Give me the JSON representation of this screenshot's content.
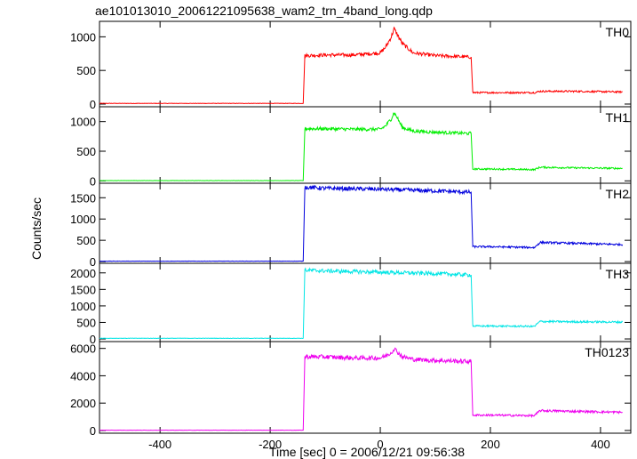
{
  "chart_data": {
    "type": "line",
    "title": "ae101013010_20061221095638_wam2_trn_4band_long.qdp",
    "xlabel": "Time [sec] 0 = 2006/12/21 09:56:38",
    "ylabel": "Counts/sec",
    "xlim": [
      -510,
      455
    ],
    "xticks": [
      -400,
      -200,
      0,
      200,
      400
    ],
    "grid": false,
    "panels": [
      {
        "name": "TH0",
        "color": "#ff0000",
        "ylim": [
          -40,
          1230
        ],
        "yticks": [
          0,
          500,
          1000
        ],
        "x": [
          -510,
          -140,
          -137,
          -100,
          -50,
          0,
          10,
          20,
          25,
          30,
          40,
          60,
          100,
          160,
          165,
          168,
          200,
          280,
          290,
          350,
          440
        ],
        "y": [
          10,
          10,
          720,
          730,
          730,
          760,
          850,
          1000,
          1120,
          1050,
          900,
          760,
          720,
          700,
          700,
          170,
          170,
          170,
          190,
          190,
          180
        ]
      },
      {
        "name": "TH1",
        "color": "#00ee00",
        "ylim": [
          -40,
          1250
        ],
        "yticks": [
          0,
          500,
          1000
        ],
        "x": [
          -510,
          -140,
          -137,
          -100,
          -50,
          0,
          10,
          20,
          25,
          30,
          40,
          60,
          100,
          160,
          165,
          168,
          200,
          280,
          290,
          350,
          440
        ],
        "y": [
          5,
          5,
          880,
          880,
          870,
          870,
          930,
          1050,
          1150,
          1080,
          900,
          840,
          820,
          800,
          800,
          200,
          200,
          190,
          230,
          220,
          210
        ]
      },
      {
        "name": "TH2",
        "color": "#0000dd",
        "ylim": [
          -40,
          1840
        ],
        "yticks": [
          0,
          500,
          1000,
          1500
        ],
        "x": [
          -510,
          -140,
          -137,
          -100,
          0,
          100,
          160,
          165,
          168,
          200,
          280,
          290,
          350,
          440
        ],
        "y": [
          10,
          10,
          1750,
          1720,
          1700,
          1660,
          1630,
          1630,
          350,
          350,
          330,
          450,
          430,
          400
        ]
      },
      {
        "name": "TH3",
        "color": "#00e5e5",
        "ylim": [
          -80,
          2290
        ],
        "yticks": [
          0,
          500,
          1000,
          1500,
          2000
        ],
        "x": [
          -510,
          -140,
          -137,
          -100,
          0,
          100,
          160,
          165,
          168,
          200,
          280,
          290,
          350,
          440
        ],
        "y": [
          20,
          20,
          2080,
          2060,
          2020,
          1980,
          1940,
          1940,
          390,
          390,
          380,
          530,
          520,
          510
        ]
      },
      {
        "name": "TH0123",
        "color": "#ee00ee",
        "ylim": [
          -200,
          6500
        ],
        "yticks": [
          0,
          2000,
          4000,
          6000
        ],
        "x": [
          -510,
          -140,
          -137,
          -100,
          -50,
          0,
          10,
          20,
          25,
          30,
          40,
          60,
          100,
          160,
          165,
          168,
          200,
          280,
          290,
          350,
          440
        ],
        "y": [
          20,
          20,
          5400,
          5380,
          5300,
          5300,
          5450,
          5700,
          5980,
          5800,
          5400,
          5200,
          5120,
          5050,
          5050,
          1120,
          1120,
          1080,
          1450,
          1400,
          1330
        ]
      }
    ]
  }
}
